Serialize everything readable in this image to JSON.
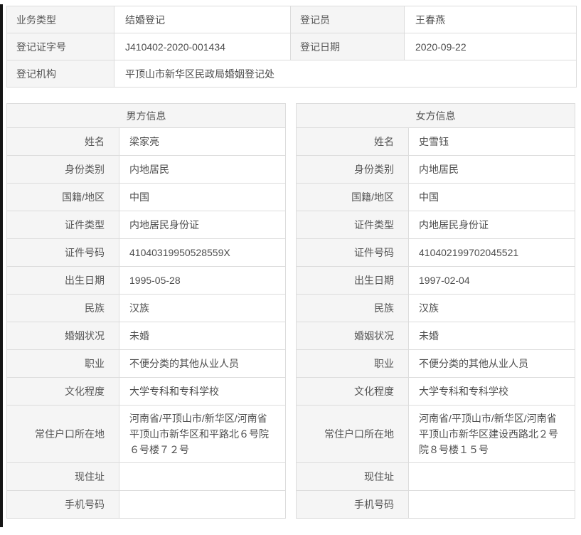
{
  "colors": {
    "label_background": "#f5f5f5",
    "value_background": "#ffffff",
    "border": "#dcdcdc",
    "text": "#555555",
    "left_edge_strip": "#151515"
  },
  "summary": {
    "business_type_label": "业务类型",
    "business_type_value": "结婚登记",
    "registrar_label": "登记员",
    "registrar_value": "王春燕",
    "cert_no_label": "登记证字号",
    "cert_no_value": "J410402-2020-001434",
    "reg_date_label": "登记日期",
    "reg_date_value": "2020-09-22",
    "agency_label": "登记机构",
    "agency_value": "平顶山市新华区民政局婚姻登记处"
  },
  "male": {
    "header": "男方信息",
    "rows": [
      {
        "label": "姓名",
        "value": "梁家亮"
      },
      {
        "label": "身份类别",
        "value": "内地居民"
      },
      {
        "label": "国籍/地区",
        "value": "中国"
      },
      {
        "label": "证件类型",
        "value": "内地居民身份证"
      },
      {
        "label": "证件号码",
        "value": "41040319950528559X"
      },
      {
        "label": "出生日期",
        "value": "1995-05-28"
      },
      {
        "label": "民族",
        "value": "汉族"
      },
      {
        "label": "婚姻状况",
        "value": "未婚"
      },
      {
        "label": "职业",
        "value": "不便分类的其他从业人员"
      },
      {
        "label": "文化程度",
        "value": "大学专科和专科学校"
      },
      {
        "label": "常住户口所在地",
        "value": "河南省/平顶山市/新华区/河南省平顶山市新华区和平路北６号院６号楼７２号"
      },
      {
        "label": "现住址",
        "value": ""
      },
      {
        "label": "手机号码",
        "value": ""
      }
    ]
  },
  "female": {
    "header": "女方信息",
    "rows": [
      {
        "label": "姓名",
        "value": "史雪钰"
      },
      {
        "label": "身份类别",
        "value": "内地居民"
      },
      {
        "label": "国籍/地区",
        "value": "中国"
      },
      {
        "label": "证件类型",
        "value": "内地居民身份证"
      },
      {
        "label": "证件号码",
        "value": "410402199702045521"
      },
      {
        "label": "出生日期",
        "value": "1997-02-04"
      },
      {
        "label": "民族",
        "value": "汉族"
      },
      {
        "label": "婚姻状况",
        "value": "未婚"
      },
      {
        "label": "职业",
        "value": "不便分类的其他从业人员"
      },
      {
        "label": "文化程度",
        "value": "大学专科和专科学校"
      },
      {
        "label": "常住户口所在地",
        "value": "河南省/平顶山市/新华区/河南省平顶山市新华区建设西路北２号院８号楼１５号"
      },
      {
        "label": "现住址",
        "value": ""
      },
      {
        "label": "手机号码",
        "value": ""
      }
    ]
  }
}
